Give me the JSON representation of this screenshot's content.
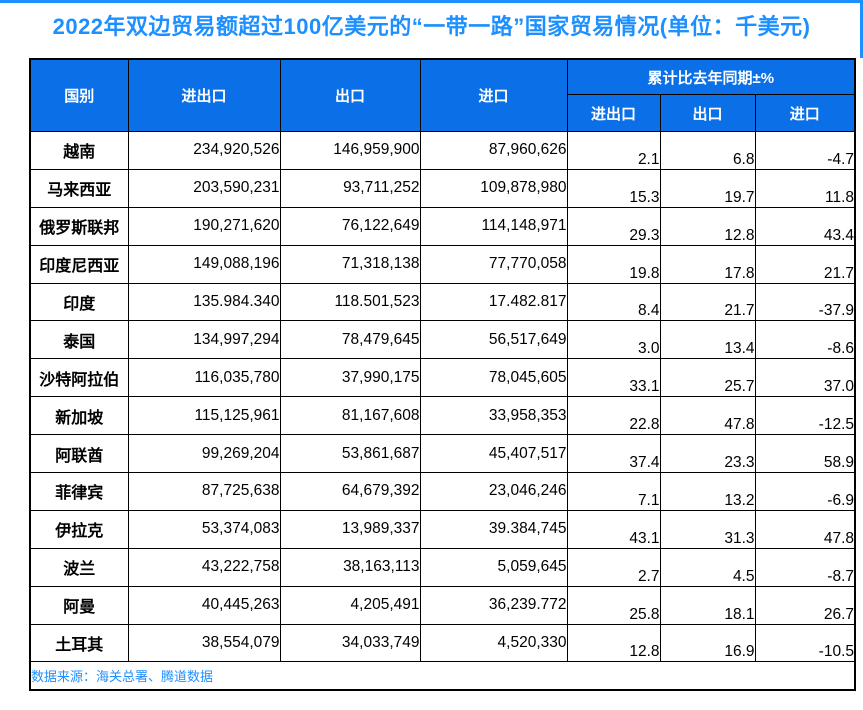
{
  "page": {
    "title": "2022年双边贸易额超过100亿美元的“一带一路”国家贸易情况(单位：千美元)",
    "source_note": "数据来源：海关总署、腾道数据"
  },
  "colors": {
    "accent_blue": "#1E8FFF",
    "header_bg": "#0B70E8",
    "header_text": "#FFFFFF",
    "border": "#000000",
    "body_text": "#000000"
  },
  "table": {
    "col_country": "国别",
    "col_total": "进出口",
    "col_export": "出口",
    "col_import": "进口",
    "pct_group": "累计比去年同期±%",
    "pct_total": "进出口",
    "pct_export": "出口",
    "pct_import": "进口",
    "rows": [
      [
        "越南",
        "234,920,526",
        "146,959,900",
        "87,960,626",
        "2.1",
        "6.8",
        "-4.7"
      ],
      [
        "马来西亚",
        "203,590,231",
        "93,711,252",
        "109,878,980",
        "15.3",
        "19.7",
        "11.8"
      ],
      [
        "俄罗斯联邦",
        "190,271,620",
        "76,122,649",
        "114,148,971",
        "29.3",
        "12.8",
        "43.4"
      ],
      [
        "印度尼西亚",
        "149,088,196",
        "71,318,138",
        "77,770,058",
        "19.8",
        "17.8",
        "21.7"
      ],
      [
        "印度",
        "135.984.340",
        "118.501,523",
        "17.482.817",
        "8.4",
        "21.7",
        "-37.9"
      ],
      [
        "泰国",
        "134,997,294",
        "78,479,645",
        "56,517,649",
        "3.0",
        "13.4",
        "-8.6"
      ],
      [
        "沙特阿拉伯",
        "116,035,780",
        "37,990,175",
        "78,045,605",
        "33.1",
        "25.7",
        "37.0"
      ],
      [
        "新加坡",
        "115,125,961",
        "81,167,608",
        "33,958,353",
        "22.8",
        "47.8",
        "-12.5"
      ],
      [
        "阿联酋",
        "99,269,204",
        "53,861,687",
        "45,407,517",
        "37.4",
        "23.3",
        "58.9"
      ],
      [
        "菲律宾",
        "87,725,638",
        "64,679,392",
        "23,046,246",
        "7.1",
        "13.2",
        "-6.9"
      ],
      [
        "伊拉克",
        "53,374,083",
        "13,989,337",
        "39.384,745",
        "43.1",
        "31.3",
        "47.8"
      ],
      [
        "波兰",
        "43,222,758",
        "38,163,113",
        "5,059,645",
        "2.7",
        "4.5",
        "-8.7"
      ],
      [
        "阿曼",
        "40,445,263",
        "4,205,491",
        "36,239.772",
        "25.8",
        "18.1",
        "26.7"
      ],
      [
        "土耳其",
        "38,554,079",
        "34,033,749",
        "4,520,330",
        "12.8",
        "16.9",
        "-10.5"
      ]
    ]
  }
}
